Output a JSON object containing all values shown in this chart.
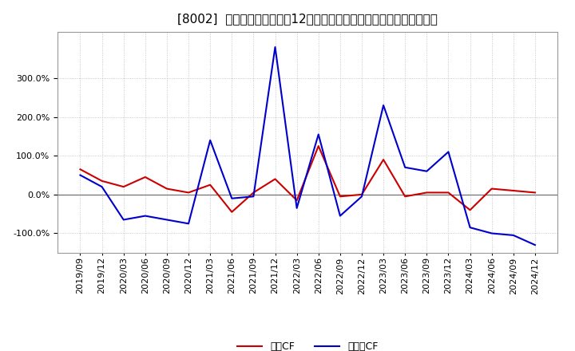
{
  "title": "[8002]  キャッシュフローの12か月移動合計の対前年同期増減率の推移",
  "x_labels": [
    "2019/09",
    "2019/12",
    "2020/03",
    "2020/06",
    "2020/09",
    "2020/12",
    "2021/03",
    "2021/06",
    "2021/09",
    "2021/12",
    "2022/03",
    "2022/06",
    "2022/09",
    "2022/12",
    "2023/03",
    "2023/06",
    "2023/09",
    "2023/12",
    "2024/03",
    "2024/06",
    "2024/09",
    "2024/12"
  ],
  "operating_cf": [
    65,
    35,
    20,
    45,
    15,
    5,
    25,
    -45,
    5,
    40,
    -15,
    125,
    -5,
    0,
    90,
    -5,
    5,
    5,
    -40,
    15,
    10,
    5
  ],
  "free_cf": [
    50,
    20,
    -65,
    -55,
    -65,
    -75,
    140,
    -10,
    -5,
    380,
    -35,
    155,
    -55,
    -5,
    230,
    70,
    60,
    110,
    -85,
    -100,
    -105,
    -130
  ],
  "operating_color": "#cc0000",
  "free_color": "#0000cc",
  "bg_color": "#ffffff",
  "plot_bg_color": "#ffffff",
  "grid_color": "#bbbbbb",
  "ylim": [
    -150,
    420
  ],
  "yticks": [
    -100,
    0,
    100,
    200,
    300
  ],
  "legend_operating": "営業CF",
  "legend_free": "フリーCF",
  "title_fontsize": 11,
  "tick_fontsize": 8,
  "legend_fontsize": 9
}
